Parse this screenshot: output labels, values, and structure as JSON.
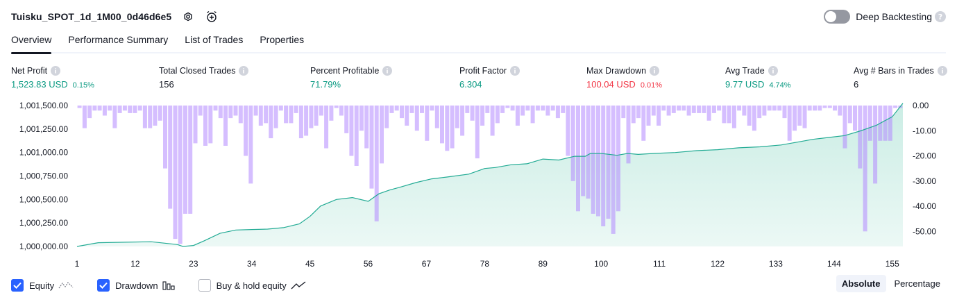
{
  "header": {
    "title": "Tuisku_SPOT_1d_1M00_0d46d6e5",
    "deep_label": "Deep Backtesting",
    "deep_enabled": false
  },
  "tabs": [
    {
      "label": "Overview",
      "active": true
    },
    {
      "label": "Performance Summary"
    },
    {
      "label": "List of Trades"
    },
    {
      "label": "Properties"
    }
  ],
  "metrics": [
    {
      "label": "Net Profit",
      "value": "1,523.83 USD",
      "pct": "0.15%",
      "color": "#089981"
    },
    {
      "label": "Total Closed Trades",
      "value": "156",
      "color": "#131722"
    },
    {
      "label": "Percent Profitable",
      "value": "71.79%",
      "color": "#089981"
    },
    {
      "label": "Profit Factor",
      "value": "6.304",
      "color": "#089981"
    },
    {
      "label": "Max Drawdown",
      "value": "100.04 USD",
      "pct": "0.01%",
      "color": "#f23645"
    },
    {
      "label": "Avg Trade",
      "value": "9.77 USD",
      "pct": "4.74%",
      "color": "#089981"
    },
    {
      "label": "Avg # Bars in Trades",
      "value": "6",
      "color": "#131722"
    }
  ],
  "legend": {
    "equity": "Equity",
    "drawdown": "Drawdown",
    "buyhold": "Buy & hold equity"
  },
  "mode": {
    "absolute": "Absolute",
    "percentage": "Percentage"
  },
  "colors": {
    "equity_line": "#22ab94",
    "equity_fill": "#c8ece3",
    "drawdown_bar": "#b388ff",
    "accent": "#2962ff"
  },
  "chart_data": {
    "type": "area",
    "y_left_ticks": [
      "1,001,500.00",
      "1,001,250.00",
      "1,001,000.00",
      "1,000,750.00",
      "1,000,500.00",
      "1,000,250.00",
      "1,000,000.00"
    ],
    "y_left_range": [
      1000000,
      1001500
    ],
    "y_right_ticks": [
      "0.00",
      "-10.00",
      "-20.00",
      "-30.00",
      "-40.00",
      "-50.00"
    ],
    "y_right_range": [
      -56,
      0
    ],
    "x_ticks": [
      1,
      12,
      23,
      34,
      45,
      56,
      67,
      78,
      89,
      100,
      111,
      122,
      133,
      144,
      155
    ],
    "x_range": [
      1,
      157
    ],
    "equity": {
      "name": "Equity",
      "x": [
        1,
        5,
        10,
        15,
        20,
        21,
        23,
        25,
        28,
        31,
        34,
        37,
        40,
        43,
        45,
        47,
        50,
        53,
        56,
        58,
        60,
        62,
        65,
        68,
        71,
        75,
        78,
        80,
        83,
        86,
        89,
        92,
        95,
        97,
        98,
        100,
        103,
        105,
        107,
        110,
        114,
        118,
        122,
        126,
        130,
        134,
        137,
        140,
        143,
        146,
        149,
        152,
        155,
        157
      ],
      "y": [
        1000000,
        1000040,
        1000045,
        1000050,
        1000020,
        1000000,
        1000010,
        1000060,
        1000140,
        1000175,
        1000180,
        1000185,
        1000200,
        1000240,
        1000320,
        1000430,
        1000500,
        1000520,
        1000480,
        1000560,
        1000600,
        1000630,
        1000680,
        1000720,
        1000740,
        1000770,
        1000830,
        1000840,
        1000870,
        1000880,
        1000930,
        1000920,
        1000960,
        1000960,
        1000990,
        1000990,
        1000970,
        1000990,
        1000980,
        1000990,
        1001000,
        1001020,
        1001030,
        1001050,
        1001060,
        1001080,
        1001110,
        1001140,
        1001160,
        1001180,
        1001230,
        1001290,
        1001380,
        1001523.83
      ]
    },
    "drawdown": {
      "name": "Drawdown",
      "values": [
        -1,
        -9,
        -5,
        -2,
        -2,
        -4,
        -2,
        -9,
        -3,
        -2,
        -3,
        -3,
        -2,
        -9,
        -9,
        -8,
        -6,
        -25,
        -41,
        -53,
        -55,
        -43,
        -43,
        -15,
        -4,
        -16,
        -15,
        -2,
        -5,
        -16,
        -5,
        -4,
        -7,
        -20,
        -31,
        -4,
        -8,
        -7,
        -13,
        -9,
        -2,
        -7,
        -7,
        -3,
        -13,
        -12,
        -9,
        -8,
        -4,
        -17,
        -6,
        -1,
        -4,
        -11,
        -20,
        -24,
        -10,
        -17,
        -33,
        -46,
        -23,
        -9,
        -3,
        -2,
        -5,
        -8,
        -3,
        -10,
        -3,
        -14,
        -2,
        -9,
        -15,
        -18,
        -17,
        -9,
        -12,
        -3,
        -6,
        -21,
        -8,
        -3,
        -12,
        -7,
        -3,
        -1,
        -2,
        -8,
        -4,
        -2,
        -7,
        -2,
        -2,
        -4,
        -2,
        -5,
        -3,
        -20,
        -30,
        -42,
        -36,
        -37,
        -43,
        -44,
        -48,
        -45,
        -51,
        -42,
        -5,
        -23,
        -7,
        -5,
        -14,
        -8,
        -4,
        -8,
        -2,
        -4,
        -3,
        -2,
        -2,
        -4,
        -3,
        -3,
        -3,
        -6,
        -3,
        -2,
        -7,
        -7,
        -9,
        -2,
        -4,
        -8,
        -10,
        -5,
        -4,
        -2,
        -2,
        -2,
        -5,
        -14,
        -10,
        -8,
        -9,
        -2,
        -2,
        -2,
        -1,
        -1,
        -2,
        -4,
        -17,
        -7,
        -10,
        -25,
        -50,
        -14,
        -31,
        -14,
        -14,
        -14,
        -1,
        -1
      ]
    }
  }
}
